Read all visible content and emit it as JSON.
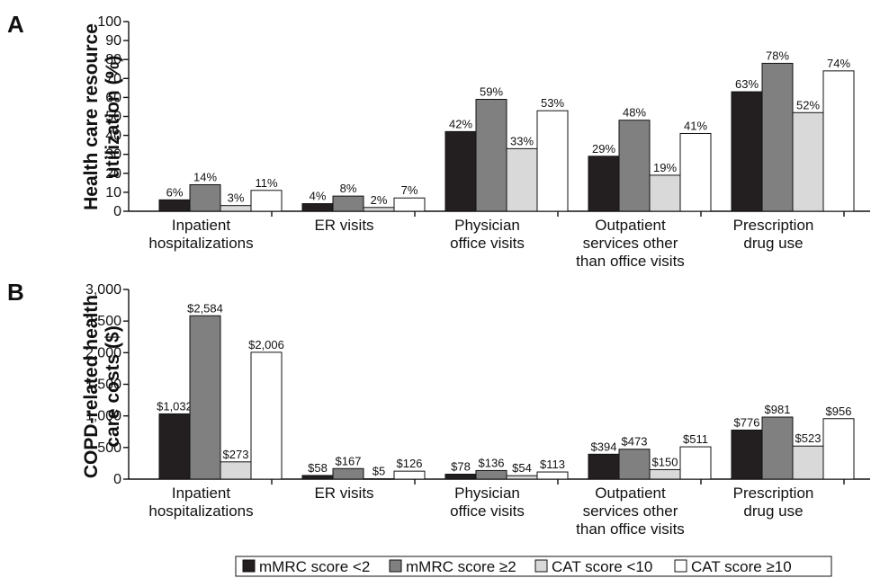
{
  "chart_data": [
    {
      "type": "bar",
      "panel": "A",
      "ylabel": [
        "Health care resource",
        "utilization (%)"
      ],
      "ylim": [
        0,
        100
      ],
      "yticks": [
        0,
        10,
        20,
        30,
        40,
        50,
        60,
        70,
        80,
        90,
        100
      ],
      "ytick_labels": [
        "0",
        "10",
        "20",
        "30",
        "40",
        "50",
        "60",
        "70",
        "80",
        "90",
        "100"
      ],
      "categories": [
        [
          "Inpatient",
          "hospitalizations"
        ],
        [
          "ER visits"
        ],
        [
          "Physician",
          "office visits"
        ],
        [
          "Outpatient",
          "services other",
          "than office visits"
        ],
        [
          "Prescription",
          "drug use"
        ]
      ],
      "series": [
        {
          "name": "mMRC score <2",
          "values": [
            6,
            4,
            42,
            29,
            63
          ],
          "labels": [
            "6%",
            "4%",
            "42%",
            "29%",
            "63%"
          ]
        },
        {
          "name": "mMRC score ≥2",
          "values": [
            14,
            8,
            59,
            48,
            78
          ],
          "labels": [
            "14%",
            "8%",
            "59%",
            "48%",
            "78%"
          ]
        },
        {
          "name": "CAT score <10",
          "values": [
            3,
            2,
            33,
            19,
            52
          ],
          "labels": [
            "3%",
            "2%",
            "33%",
            "19%",
            "52%"
          ]
        },
        {
          "name": "CAT score ≥10",
          "values": [
            11,
            7,
            53,
            41,
            74
          ],
          "labels": [
            "11%",
            "7%",
            "53%",
            "41%",
            "74%"
          ]
        }
      ]
    },
    {
      "type": "bar",
      "panel": "B",
      "ylabel": [
        "COPD-related health",
        "care costs ($)"
      ],
      "ylim": [
        0,
        3000
      ],
      "yticks": [
        0,
        500,
        1000,
        1500,
        2000,
        2500,
        3000
      ],
      "ytick_labels": [
        "0",
        "500",
        "1,000",
        "1,500",
        "2,000",
        "2,500",
        "3,000"
      ],
      "categories": [
        [
          "Inpatient",
          "hospitalizations"
        ],
        [
          "ER visits"
        ],
        [
          "Physician",
          "office visits"
        ],
        [
          "Outpatient",
          "services other",
          "than office visits"
        ],
        [
          "Prescription",
          "drug use"
        ]
      ],
      "series": [
        {
          "name": "mMRC score <2",
          "values": [
            1032,
            58,
            78,
            394,
            776
          ],
          "labels": [
            "$1,032",
            "$58",
            "$78",
            "$394",
            "$776"
          ]
        },
        {
          "name": "mMRC score ≥2",
          "values": [
            2584,
            167,
            136,
            473,
            981
          ],
          "labels": [
            "$2,584",
            "$167",
            "$136",
            "$473",
            "$981"
          ]
        },
        {
          "name": "CAT score <10",
          "values": [
            273,
            5,
            54,
            150,
            523
          ],
          "labels": [
            "$273",
            "$5",
            "$54",
            "$150",
            "$523"
          ]
        },
        {
          "name": "CAT score ≥10",
          "values": [
            2006,
            126,
            113,
            511,
            956
          ],
          "labels": [
            "$2,006",
            "$126",
            "$113",
            "$511",
            "$956"
          ]
        }
      ]
    }
  ],
  "colors": [
    "#231f20",
    "#808080",
    "#d9d9d9",
    "#ffffff"
  ],
  "legend": {
    "placement": "bottom-right",
    "items": [
      "mMRC score <2",
      "mMRC score ≥2",
      "CAT score <10",
      "CAT score ≥10"
    ]
  }
}
